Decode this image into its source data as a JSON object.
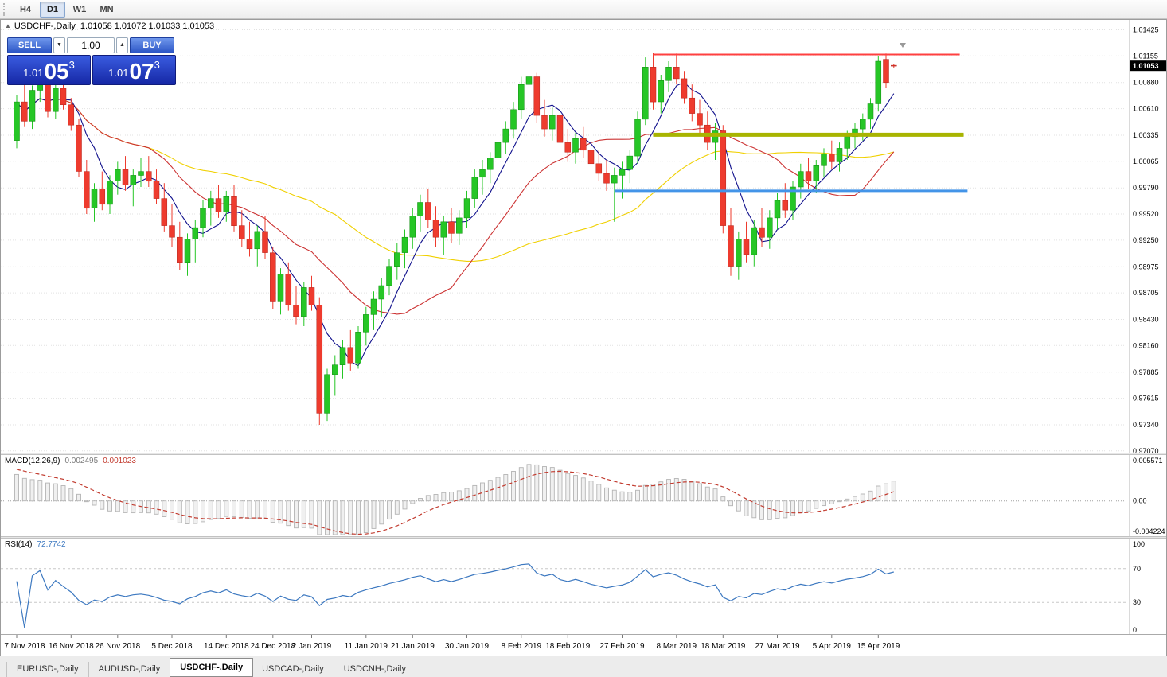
{
  "toolbar": {
    "timeframes": [
      {
        "label": "H4",
        "active": false
      },
      {
        "label": "D1",
        "active": true
      },
      {
        "label": "W1",
        "active": false
      },
      {
        "label": "MN",
        "active": false
      }
    ]
  },
  "chart_header": {
    "symbol": "USDCHF-,Daily",
    "ohlc": "1.01058 1.01072 1.01033 1.01053"
  },
  "trade_panel": {
    "sell_label": "SELL",
    "buy_label": "BUY",
    "volume": "1.00",
    "sell_price_main": "1.01",
    "sell_price_big": "05",
    "sell_price_sup": "3",
    "buy_price_main": "1.01",
    "buy_price_big": "07",
    "buy_price_sup": "3"
  },
  "price_axis": {
    "ticks": [
      "1.01425",
      "1.01155",
      "1.00880",
      "1.00610",
      "1.00335",
      "1.00065",
      "0.99790",
      "0.99520",
      "0.99250",
      "0.98975",
      "0.98705",
      "0.98430",
      "0.98160",
      "0.97885",
      "0.97615",
      "0.97340",
      "0.97070"
    ],
    "current_price": "1.01053"
  },
  "chart_data": {
    "type": "candlestick",
    "symbol": "USDCHF",
    "timeframe": "Daily",
    "title": "USDCHF-,Daily",
    "price_range": {
      "max": 1.01495,
      "min": 0.97085
    },
    "candles": [
      [
        1.0028,
        1.0075,
        1.002,
        1.0068
      ],
      [
        1.0068,
        1.0088,
        1.0042,
        1.0048
      ],
      [
        1.0048,
        1.0085,
        1.004,
        1.008
      ],
      [
        1.008,
        1.0094,
        1.0068,
        1.009
      ],
      [
        1.009,
        1.0093,
        1.0052,
        1.0058
      ],
      [
        1.0058,
        1.0086,
        1.005,
        1.0082
      ],
      [
        1.0082,
        1.009,
        1.006,
        1.0065
      ],
      [
        1.0065,
        1.0072,
        1.0038,
        1.0044
      ],
      [
        1.0044,
        1.005,
        0.999,
        0.9996
      ],
      [
        0.9996,
        1.0008,
        0.9952,
        0.9958
      ],
      [
        0.9958,
        0.9984,
        0.9944,
        0.9978
      ],
      [
        0.9978,
        0.9996,
        0.9956,
        0.9962
      ],
      [
        0.9962,
        0.9992,
        0.9952,
        0.9986
      ],
      [
        0.9986,
        1.0006,
        0.9972,
        0.9998
      ],
      [
        0.9998,
        1.0012,
        0.9976,
        0.9982
      ],
      [
        0.9982,
        0.9998,
        0.996,
        0.9992
      ],
      [
        0.9992,
        1.001,
        0.998,
        0.9996
      ],
      [
        0.9996,
        1.0012,
        0.998,
        0.9986
      ],
      [
        0.9986,
        0.9998,
        0.9962,
        0.9968
      ],
      [
        0.9968,
        0.9984,
        0.9934,
        0.994
      ],
      [
        0.994,
        0.9962,
        0.9918,
        0.9928
      ],
      [
        0.9928,
        0.9944,
        0.9894,
        0.9902
      ],
      [
        0.9902,
        0.9932,
        0.9888,
        0.9926
      ],
      [
        0.9926,
        0.9946,
        0.9902,
        0.9938
      ],
      [
        0.9938,
        0.9966,
        0.9928,
        0.9958
      ],
      [
        0.9958,
        0.9976,
        0.994,
        0.9968
      ],
      [
        0.9968,
        0.9982,
        0.9948,
        0.9954
      ],
      [
        0.9954,
        0.9976,
        0.9944,
        0.997
      ],
      [
        0.997,
        0.9982,
        0.9934,
        0.994
      ],
      [
        0.994,
        0.9956,
        0.9918,
        0.9926
      ],
      [
        0.9926,
        0.9944,
        0.9908,
        0.9916
      ],
      [
        0.9916,
        0.994,
        0.9898,
        0.9934
      ],
      [
        0.9934,
        0.995,
        0.9906,
        0.9912
      ],
      [
        0.9912,
        0.9918,
        0.9854,
        0.9862
      ],
      [
        0.9862,
        0.9896,
        0.9848,
        0.989
      ],
      [
        0.989,
        0.9902,
        0.9852,
        0.9858
      ],
      [
        0.9858,
        0.9878,
        0.9838,
        0.9846
      ],
      [
        0.9846,
        0.9882,
        0.9836,
        0.9876
      ],
      [
        0.9876,
        0.9888,
        0.9852,
        0.9858
      ],
      [
        0.9858,
        0.9866,
        0.9734,
        0.9746
      ],
      [
        0.9746,
        0.9792,
        0.9738,
        0.9786
      ],
      [
        0.9786,
        0.9806,
        0.9764,
        0.9796
      ],
      [
        0.9796,
        0.9822,
        0.9782,
        0.9814
      ],
      [
        0.9814,
        0.9832,
        0.979,
        0.9798
      ],
      [
        0.9798,
        0.9836,
        0.9792,
        0.983
      ],
      [
        0.983,
        0.9856,
        0.9816,
        0.9848
      ],
      [
        0.9848,
        0.9872,
        0.9832,
        0.9864
      ],
      [
        0.9864,
        0.9886,
        0.9846,
        0.9878
      ],
      [
        0.9878,
        0.9906,
        0.9868,
        0.9898
      ],
      [
        0.9898,
        0.9922,
        0.9884,
        0.9912
      ],
      [
        0.9912,
        0.9936,
        0.9896,
        0.9928
      ],
      [
        0.9928,
        0.9958,
        0.9916,
        0.995
      ],
      [
        0.995,
        0.9972,
        0.9934,
        0.9964
      ],
      [
        0.9964,
        0.9978,
        0.9938,
        0.9946
      ],
      [
        0.9946,
        0.996,
        0.9918,
        0.9928
      ],
      [
        0.9928,
        0.995,
        0.991,
        0.9944
      ],
      [
        0.9944,
        0.9958,
        0.9922,
        0.9932
      ],
      [
        0.9932,
        0.9956,
        0.992,
        0.9948
      ],
      [
        0.9948,
        0.9976,
        0.9938,
        0.9968
      ],
      [
        0.9968,
        0.9998,
        0.9958,
        0.999
      ],
      [
        0.999,
        1.0008,
        0.9972,
        0.9998
      ],
      [
        0.9998,
        1.0016,
        0.9984,
        1.001
      ],
      [
        1.001,
        1.0032,
        0.9998,
        1.0026
      ],
      [
        1.0026,
        1.0048,
        1.0014,
        1.004
      ],
      [
        1.004,
        1.0068,
        1.003,
        1.006
      ],
      [
        1.006,
        1.0094,
        1.005,
        1.0086
      ],
      [
        1.0086,
        1.01,
        1.0068,
        1.0094
      ],
      [
        1.0094,
        1.0098,
        1.0046,
        1.0054
      ],
      [
        1.0054,
        1.007,
        1.0032,
        1.004
      ],
      [
        1.004,
        1.0062,
        1.0028,
        1.0054
      ],
      [
        1.0054,
        1.0058,
        1.0018,
        1.0026
      ],
      [
        1.0026,
        1.004,
        1.0006,
        1.0016
      ],
      [
        1.0016,
        1.0036,
        1.0004,
        1.003
      ],
      [
        1.003,
        1.0042,
        1.001,
        1.0018
      ],
      [
        1.0018,
        1.003,
        0.9996,
        1.0004
      ],
      [
        1.0004,
        1.0018,
        0.9986,
        0.9994
      ],
      [
        0.9994,
        1.0008,
        0.9976,
        0.9984
      ],
      [
        0.9984,
        1.0,
        0.9944,
        0.9992
      ],
      [
        0.9992,
        1.0006,
        0.9968,
        0.9998
      ],
      [
        0.9998,
        1.0018,
        0.9984,
        1.0012
      ],
      [
        1.0012,
        1.0058,
        1.0004,
        1.005
      ],
      [
        1.005,
        1.0114,
        1.0044,
        1.0104
      ],
      [
        1.0104,
        1.0119,
        1.006,
        1.0068
      ],
      [
        1.0068,
        1.0096,
        1.0056,
        1.009
      ],
      [
        1.009,
        1.011,
        1.0078,
        1.0104
      ],
      [
        1.0104,
        1.0118,
        1.0086,
        1.0092
      ],
      [
        1.0092,
        1.01,
        1.0066,
        1.0072
      ],
      [
        1.0072,
        1.0086,
        1.0048,
        1.0056
      ],
      [
        1.0056,
        1.007,
        1.0036,
        1.0044
      ],
      [
        1.0044,
        1.0058,
        1.0018,
        1.0026
      ],
      [
        1.0026,
        1.0046,
        1.0008,
        1.0038
      ],
      [
        1.0038,
        1.0044,
        0.9932,
        0.994
      ],
      [
        0.994,
        0.9958,
        0.9888,
        0.9898
      ],
      [
        0.9898,
        0.9934,
        0.9884,
        0.9926
      ],
      [
        0.9926,
        0.9944,
        0.9902,
        0.991
      ],
      [
        0.991,
        0.9946,
        0.9898,
        0.9938
      ],
      [
        0.9938,
        0.9958,
        0.9918,
        0.9928
      ],
      [
        0.9928,
        0.9956,
        0.9916,
        0.9948
      ],
      [
        0.9948,
        0.9974,
        0.9936,
        0.9966
      ],
      [
        0.9966,
        0.9984,
        0.9948,
        0.9956
      ],
      [
        0.9956,
        0.9986,
        0.9946,
        0.998
      ],
      [
        0.998,
        1.0004,
        0.9968,
        0.9996
      ],
      [
        0.9996,
        1.001,
        0.9978,
        0.9986
      ],
      [
        0.9986,
        1.0008,
        0.9974,
        1.0002
      ],
      [
        1.0002,
        1.002,
        0.999,
        1.0014
      ],
      [
        1.0014,
        1.0028,
        0.9998,
        1.0006
      ],
      [
        1.0006,
        1.0026,
        0.9996,
        1.002
      ],
      [
        1.002,
        1.0038,
        1.0008,
        1.0032
      ],
      [
        1.0032,
        1.0046,
        1.002,
        1.004
      ],
      [
        1.004,
        1.0056,
        1.0028,
        1.005
      ],
      [
        1.005,
        1.0072,
        1.004,
        1.0066
      ],
      [
        1.0066,
        1.0115,
        1.0058,
        1.011
      ],
      [
        1.0112,
        1.0118,
        1.0082,
        1.0088
      ],
      [
        1.01058,
        1.01072,
        1.01033,
        1.01053
      ]
    ],
    "x_labels": [
      {
        "i": 0,
        "t": "7 Nov 2018"
      },
      {
        "i": 7,
        "t": "16 Nov 2018"
      },
      {
        "i": 13,
        "t": "26 Nov 2018"
      },
      {
        "i": 20,
        "t": "5 Dec 2018"
      },
      {
        "i": 27,
        "t": "14 Dec 2018"
      },
      {
        "i": 33,
        "t": "24 Dec 2018"
      },
      {
        "i": 38,
        "t": "2 Jan 2019"
      },
      {
        "i": 45,
        "t": "11 Jan 2019"
      },
      {
        "i": 51,
        "t": "21 Jan 2019"
      },
      {
        "i": 58,
        "t": "30 Jan 2019"
      },
      {
        "i": 65,
        "t": "8 Feb 2019"
      },
      {
        "i": 71,
        "t": "18 Feb 2019"
      },
      {
        "i": 78,
        "t": "27 Feb 2019"
      },
      {
        "i": 85,
        "t": "8 Mar 2019"
      },
      {
        "i": 91,
        "t": "18 Mar 2019"
      },
      {
        "i": 98,
        "t": "27 Mar 2019"
      },
      {
        "i": 105,
        "t": "5 Apr 2019"
      },
      {
        "i": 111,
        "t": "15 Apr 2019"
      }
    ],
    "overlay_lines": [
      {
        "name": "resistance-line",
        "color": "#ff4040",
        "price": 1.0117,
        "from_bar": 82,
        "to_bar": 121.5,
        "width": 2
      },
      {
        "name": "pivot-line",
        "color": "#a8b400",
        "price": 1.0034,
        "from_bar": 82,
        "to_bar": 122,
        "width": 5
      },
      {
        "name": "support-line",
        "color": "#4394e8",
        "price": 0.9976,
        "from_bar": 77,
        "to_bar": 122.5,
        "width": 3
      }
    ],
    "moving_averages": [
      {
        "name": "ma-fast",
        "period": 6,
        "color": "#10108c"
      },
      {
        "name": "ma-mid",
        "period": 18,
        "color": "#cc3333"
      },
      {
        "name": "ma-slow",
        "period": 42,
        "color": "#f0d000"
      }
    ],
    "candle_colors": {
      "up": "#26c626",
      "down": "#ee3b2e"
    }
  },
  "macd_panel": {
    "name": "MACD(12,26,9)",
    "value_main": "0.002495",
    "value_signal": "0.001023",
    "axis_max": "0.005571",
    "axis_zero": "0.00",
    "axis_min": "-0.004224",
    "params": {
      "fast": 12,
      "slow": 26,
      "signal": 9
    },
    "histogram_color": "#b4b4b4",
    "signal_color": "#c23b2f"
  },
  "rsi_panel": {
    "name": "RSI(14)",
    "value": "72.7742",
    "period": 14,
    "axis": [
      "100",
      "70",
      "30",
      "0"
    ],
    "levels": [
      70,
      30
    ],
    "line_color": "#3c78c0"
  },
  "bottom_tabs": [
    {
      "label": "EURUSD-,Daily",
      "active": false
    },
    {
      "label": "AUDUSD-,Daily",
      "active": false
    },
    {
      "label": "USDCHF-,Daily",
      "active": true
    },
    {
      "label": "USDCAD-,Daily",
      "active": false
    },
    {
      "label": "USDCNH-,Daily",
      "active": false
    }
  ]
}
